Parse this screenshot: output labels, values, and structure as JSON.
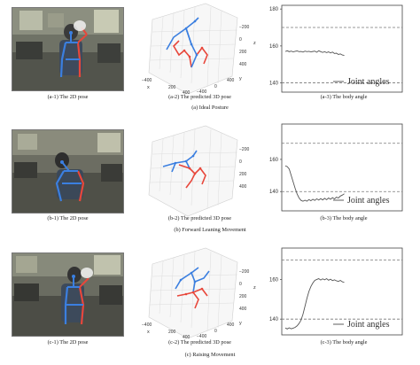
{
  "rows": [
    {
      "row_caption": "(a) Ideal Posture",
      "pose2d_caption": "(a-1) The 2D pose",
      "pose3d_caption": "(a-2) The predicted 3D pose",
      "angle_caption": "(a-3) The body angle"
    },
    {
      "row_caption": "(b) Forward Leaning Movement",
      "pose2d_caption": "(b-1) The 2D pose",
      "pose3d_caption": "(b-2) The predicted 3D pose",
      "angle_caption": "(b-3) The body angle"
    },
    {
      "row_caption": "(c) Raising Movement",
      "pose2d_caption": "(c-1) The 2D pose",
      "pose3d_caption": "(c-2) The predicted 3D pose",
      "angle_caption": "(c-3) The body angle"
    }
  ],
  "pose3d_axes": {
    "xlabel": "x",
    "ylabel": "y",
    "zlabel": "z",
    "x_ticks": [
      "−400",
      "200",
      "400"
    ],
    "y_ticks": [
      "−400",
      "−200",
      "0",
      "200",
      "400"
    ],
    "z_ticks": [
      "−200",
      "0",
      "200",
      "400"
    ],
    "left_color": "#e8473b",
    "right_color": "#3b7fe0"
  },
  "colors": {
    "skeleton_left": "#e8473b",
    "skeleton_right": "#3b7fe0",
    "curve": "#555555",
    "threshold": "#777777"
  },
  "chart_data": [
    {
      "type": "line",
      "legend": "Joint angles",
      "legend_placement": "bottom-right",
      "y_ticks": [
        140,
        160,
        180
      ],
      "ylim": [
        135,
        182
      ],
      "thresholds": [
        140,
        170
      ],
      "x": [
        0,
        1,
        2,
        3,
        4,
        5,
        6,
        7,
        8,
        9,
        10,
        11,
        12,
        13,
        14,
        15,
        16,
        17,
        18,
        19,
        20,
        21,
        22,
        23,
        24,
        25,
        26,
        27,
        28,
        29,
        30
      ],
      "values": [
        157,
        157.4,
        156.9,
        157.2,
        156.8,
        157.1,
        157.3,
        156.9,
        157,
        156.7,
        157.2,
        156.9,
        157.1,
        156.8,
        157,
        157.2,
        156.6,
        157.4,
        156.9,
        156.5,
        156.9,
        156.4,
        156.8,
        156.2,
        156.7,
        155.9,
        156.1,
        155.4,
        155.7,
        155.1,
        154.9
      ]
    },
    {
      "type": "line",
      "legend": "Joint angles",
      "legend_placement": "bottom-right",
      "y_ticks": [
        140,
        160
      ],
      "ylim": [
        128,
        182
      ],
      "thresholds": [
        140,
        170
      ],
      "x": [
        0,
        1,
        2,
        3,
        4,
        5,
        6,
        7,
        8,
        9,
        10,
        11,
        12,
        13,
        14,
        15,
        16,
        17,
        18,
        19,
        20,
        21,
        22,
        23,
        24,
        25,
        26,
        27,
        28,
        29,
        30
      ],
      "values": [
        156,
        155.5,
        154,
        150,
        146,
        142,
        138.5,
        136,
        134.5,
        134,
        134.6,
        134,
        135,
        134.3,
        135.2,
        134.5,
        135.5,
        134.7,
        135.6,
        134.8,
        135.8,
        134.9,
        136,
        135.2,
        136.2,
        135.4,
        136.5,
        136,
        137.2,
        137.8,
        138.6
      ]
    },
    {
      "type": "line",
      "legend": "Joint angles",
      "legend_placement": "bottom-right",
      "y_ticks": [
        140,
        160
      ],
      "ylim": [
        132,
        176
      ],
      "thresholds": [
        140,
        170
      ],
      "x": [
        0,
        1,
        2,
        3,
        4,
        5,
        6,
        7,
        8,
        9,
        10,
        11,
        12,
        13,
        14,
        15,
        16,
        17,
        18,
        19,
        20,
        21,
        22,
        23,
        24,
        25,
        26,
        27,
        28,
        29,
        30
      ],
      "values": [
        135.5,
        135,
        135.6,
        135.1,
        135.4,
        135.8,
        136.6,
        137.8,
        139.5,
        142.5,
        146.5,
        150.5,
        154,
        156.5,
        158.3,
        159.6,
        160.1,
        160.5,
        159.8,
        160.4,
        159.9,
        160.5,
        159.7,
        160.2,
        159.5,
        159.9,
        159.4,
        159.1,
        159.6,
        158.9,
        158.6
      ]
    }
  ]
}
